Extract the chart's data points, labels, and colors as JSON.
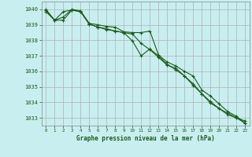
{
  "title": "Graphe pression niveau de la mer (hPa)",
  "background_color": "#c8eef0",
  "grid_color": "#b0b0b0",
  "line_color": "#1a5c1a",
  "xlim": [
    -0.5,
    23.5
  ],
  "ylim": [
    1032.5,
    1040.5
  ],
  "yticks": [
    1033,
    1034,
    1035,
    1036,
    1037,
    1038,
    1039,
    1040
  ],
  "xticks": [
    0,
    1,
    2,
    3,
    4,
    5,
    6,
    7,
    8,
    9,
    10,
    11,
    12,
    13,
    14,
    15,
    16,
    17,
    18,
    19,
    20,
    21,
    22,
    23
  ],
  "series1": [
    1040.0,
    1039.3,
    1039.5,
    1040.0,
    1039.9,
    1039.1,
    1039.0,
    1038.9,
    1038.85,
    1038.55,
    1038.5,
    1038.5,
    1038.6,
    1037.05,
    1036.6,
    1036.35,
    1036.0,
    1035.7,
    1034.8,
    1034.4,
    1033.9,
    1033.4,
    1033.1,
    1032.65
  ],
  "series2": [
    1039.85,
    1039.3,
    1039.85,
    1039.95,
    1039.85,
    1039.05,
    1038.85,
    1038.75,
    1038.6,
    1038.5,
    1038.4,
    1037.8,
    1037.4,
    1036.9,
    1036.4,
    1036.2,
    1035.7,
    1035.2,
    1034.55,
    1034.05,
    1033.6,
    1033.3,
    1033.0,
    1032.65
  ],
  "series3": [
    1039.95,
    1039.3,
    1039.3,
    1039.95,
    1039.85,
    1039.05,
    1038.85,
    1038.7,
    1038.6,
    1038.5,
    1037.95,
    1037.0,
    1037.45,
    1037.0,
    1036.45,
    1036.1,
    1035.7,
    1035.1,
    1034.55,
    1033.95,
    1033.6,
    1033.2,
    1033.0,
    1032.8
  ]
}
